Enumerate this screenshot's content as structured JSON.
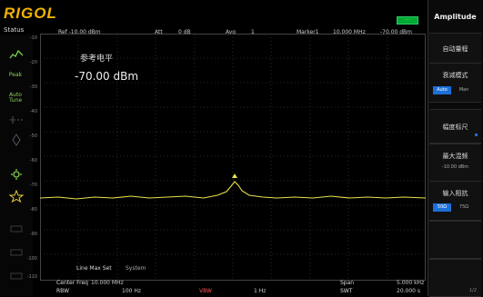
{
  "brand": {
    "name": "RIGOL",
    "color": "#f2b300"
  },
  "status_label": "Status",
  "status_indicator": "····",
  "left_icons": [
    {
      "name": "trace-icon",
      "label": ""
    },
    {
      "name": "peak-icon",
      "label": "Peak"
    },
    {
      "name": "auto-icon",
      "label": "Auto Tune"
    },
    {
      "name": "dashed-icon",
      "label": ""
    },
    {
      "name": "marker-icon",
      "label": ""
    },
    {
      "name": "gear-icon",
      "label": ""
    },
    {
      "name": "star-icon",
      "label": ""
    },
    {
      "name": "dim1-icon",
      "label": ""
    },
    {
      "name": "dim2-icon",
      "label": ""
    },
    {
      "name": "dim3-icon",
      "label": ""
    }
  ],
  "topbar": {
    "ref": "Ref  -10.00 dBm",
    "att": "Att",
    "att_val": "0 dB",
    "avg": "Avg",
    "avg_val": "1",
    "marker1": "Marker1",
    "marker1_freq": "10.000 MHz",
    "marker1_amp": "-70.00 dBm"
  },
  "marker_readout": {
    "title": "参考电平",
    "value": "-70.00 dBm"
  },
  "y_labels": [
    "-10",
    "-20",
    "-30",
    "-40",
    "-50",
    "-60",
    "-70",
    "-80",
    "-90",
    "-100",
    "-110"
  ],
  "limit_line": {
    "label": "Line Max Set",
    "value": "System"
  },
  "bottom": {
    "center_freq_label": "Center Freq",
    "center_freq_val": "10.000 MHz",
    "span_label": "Span",
    "span_val": "5.000 kHz",
    "rbw_label": "RBW",
    "rbw_val": "100 Hz",
    "vbw_label": "VBW",
    "vbw_val": "1 Hz",
    "swt_label": "SWT",
    "swt_val": "20.000 s"
  },
  "right_panel": {
    "title": "Amplitude",
    "buttons": [
      {
        "name": "auto-scale-button",
        "label": "自动量程"
      },
      {
        "name": "ref-level-button",
        "label": "衰减模式",
        "toggle": {
          "on": "Auto",
          "off": "Man"
        }
      },
      {
        "name": "scale-type-button",
        "label": "幅度标尺"
      },
      {
        "name": "max-mixer-button",
        "label": "最大混频",
        "sub": "-10.00 dBm"
      },
      {
        "name": "input-imp-button",
        "label": "输入阻抗",
        "toggle": {
          "on": "50Ω",
          "off": "75Ω"
        }
      },
      {
        "name": "blank-button-1",
        "label": ""
      },
      {
        "name": "page-button",
        "label": "1/2"
      }
    ]
  },
  "colors": {
    "trace": "#e8e24a",
    "accent": "#1d6fd8",
    "grid": "#2a2a2a"
  }
}
